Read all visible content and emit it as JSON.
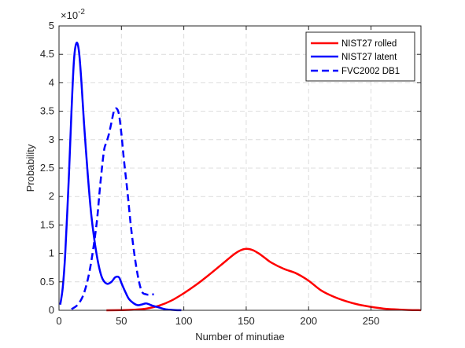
{
  "chart_data": {
    "type": "line",
    "xlabel": "Number of minutiae",
    "ylabel": "Probability",
    "y_exponent_label": "×10",
    "y_exponent_power": "-2",
    "xlim": [
      0,
      290
    ],
    "ylim": [
      0,
      5
    ],
    "x_ticks": [
      0,
      50,
      100,
      150,
      200,
      250
    ],
    "y_ticks": [
      0,
      0.5,
      1,
      1.5,
      2,
      2.5,
      3,
      3.5,
      4,
      4.5,
      5
    ],
    "x_tick_labels": [
      "0",
      "50",
      "100",
      "150",
      "200",
      "250"
    ],
    "y_tick_labels": [
      "0",
      "0.5",
      "1",
      "1.5",
      "2",
      "2.5",
      "3",
      "3.5",
      "4",
      "4.5",
      "5"
    ],
    "grid": true,
    "legend_position": "top-right",
    "series": [
      {
        "name": "NIST27 rolled",
        "color": "#ff0000",
        "style": "solid",
        "x": [
          38,
          50,
          60,
          70,
          80,
          90,
          100,
          110,
          120,
          130,
          140,
          145,
          150,
          155,
          160,
          165,
          170,
          180,
          190,
          200,
          210,
          220,
          230,
          240,
          250,
          260,
          270,
          280,
          290
        ],
        "y": [
          0,
          0.003,
          0.01,
          0.03,
          0.08,
          0.17,
          0.3,
          0.45,
          0.62,
          0.8,
          0.98,
          1.05,
          1.08,
          1.06,
          1.0,
          0.92,
          0.84,
          0.73,
          0.65,
          0.52,
          0.35,
          0.24,
          0.16,
          0.1,
          0.06,
          0.03,
          0.015,
          0.006,
          0.002
        ]
      },
      {
        "name": "NIST27 latent",
        "color": "#0000ff",
        "style": "solid",
        "x": [
          1,
          3,
          5,
          8,
          10,
          12,
          14,
          16,
          18,
          20,
          23,
          26,
          30,
          34,
          38,
          42,
          45,
          48,
          50,
          53,
          56,
          60,
          63,
          66,
          70,
          75,
          80,
          85,
          90,
          95,
          98
        ],
        "y": [
          0.1,
          0.4,
          1.0,
          2.4,
          3.5,
          4.4,
          4.7,
          4.55,
          4.0,
          3.3,
          2.4,
          1.65,
          1.0,
          0.6,
          0.47,
          0.5,
          0.58,
          0.58,
          0.48,
          0.33,
          0.2,
          0.12,
          0.09,
          0.1,
          0.12,
          0.08,
          0.05,
          0.02,
          0.008,
          0.002,
          0.001
        ]
      },
      {
        "name": "FVC2002 DB1",
        "color": "#0000ff",
        "style": "dashed",
        "x": [
          10,
          15,
          20,
          25,
          30,
          33,
          36,
          38,
          40,
          42,
          44,
          46,
          48,
          50,
          52,
          55,
          58,
          62,
          66,
          70,
          73,
          76
        ],
        "y": [
          0.02,
          0.1,
          0.3,
          0.75,
          1.5,
          2.2,
          2.8,
          2.95,
          3.1,
          3.3,
          3.5,
          3.55,
          3.45,
          3.1,
          2.65,
          2.05,
          1.4,
          0.75,
          0.35,
          0.28,
          0.28,
          0.28
        ]
      }
    ]
  }
}
